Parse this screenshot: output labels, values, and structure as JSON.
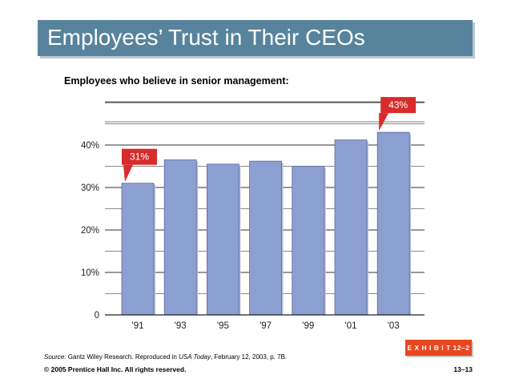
{
  "slide": {
    "title": "Employees’ Trust in Their CEOs",
    "subtitle": "Employees who believe in senior management:",
    "source_label": "Source:",
    "source_text": " Gantz Wiley Research. Reproduced in ",
    "source_pub": "USA Today",
    "source_date": ", February 12, 2003, p. 7B.",
    "copyright": "© 2005 Prentice Hall Inc. All rights reserved.",
    "page_number": "13–13",
    "exhibit": "E X H I B I T 12–2"
  },
  "colors": {
    "title_bg": "#57849c",
    "bar_fill": "#8c9fd1",
    "bar_stroke": "#5a6a9a",
    "callout": "#d92b2b",
    "exhibit_bg": "#e8471f"
  },
  "chart_data": {
    "type": "bar",
    "title": "Employees who believe in senior management:",
    "categories": [
      "'91",
      "'93",
      "'95",
      "'97",
      "'99",
      "'01",
      "'03"
    ],
    "values": [
      31,
      36.5,
      35.5,
      36.2,
      35,
      41.2,
      43
    ],
    "ylim": [
      0,
      50
    ],
    "yticks": [
      0,
      10,
      20,
      30,
      40
    ],
    "ytick_labels": [
      "0",
      "10%",
      "20%",
      "30%",
      "40%"
    ],
    "xlabel": "",
    "ylabel": "",
    "grid": true,
    "annotations": [
      {
        "category_index": 0,
        "label": "31%"
      },
      {
        "category_index": 6,
        "label": "43%"
      }
    ]
  }
}
